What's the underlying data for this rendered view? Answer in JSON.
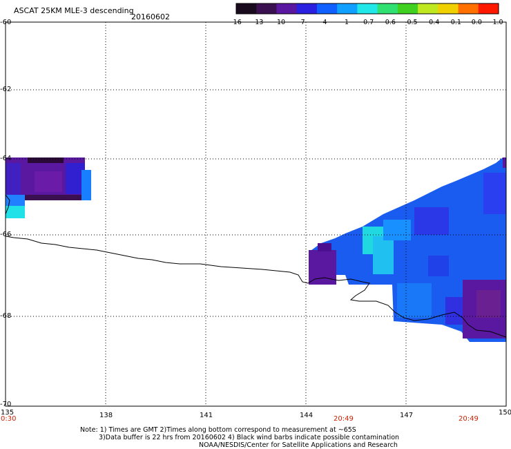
{
  "header": {
    "title": "ASCAT 25KM MLE-3 descending",
    "date": "20160602"
  },
  "colorbar": {
    "labels": [
      "-16",
      "-13",
      "-10",
      "-7",
      "-4",
      "-1",
      "-0.7",
      "-0.6",
      "-0.5",
      "-0.4",
      "-0.1",
      "0.0",
      "1.0"
    ],
    "colors": [
      "#1a0a1e",
      "#3a1050",
      "#5a18a0",
      "#2a20e0",
      "#1060ff",
      "#10a0ff",
      "#20e8e8",
      "#30e070",
      "#40d020",
      "#c0e820",
      "#f0d000",
      "#ff7000",
      "#ff1800"
    ]
  },
  "map": {
    "lon_ticks": [
      "135",
      "138",
      "141",
      "144",
      "147",
      "150"
    ],
    "lat_ticks": [
      "-60",
      "-62",
      "-64",
      "-66",
      "-68",
      "-70"
    ],
    "times": [
      "0:30",
      "20:49",
      "20:49"
    ]
  },
  "notes": {
    "line1": "Note: 1) Times are GMT 2)Times along bottom correspond to measurement at ~65S",
    "line2": "3)Data buffer is 22 hrs from 20160602 4) Black wind barbs indicate possible contamination",
    "line3": "NOAA/NESDIS/Center for Satellite Applications and Research"
  }
}
